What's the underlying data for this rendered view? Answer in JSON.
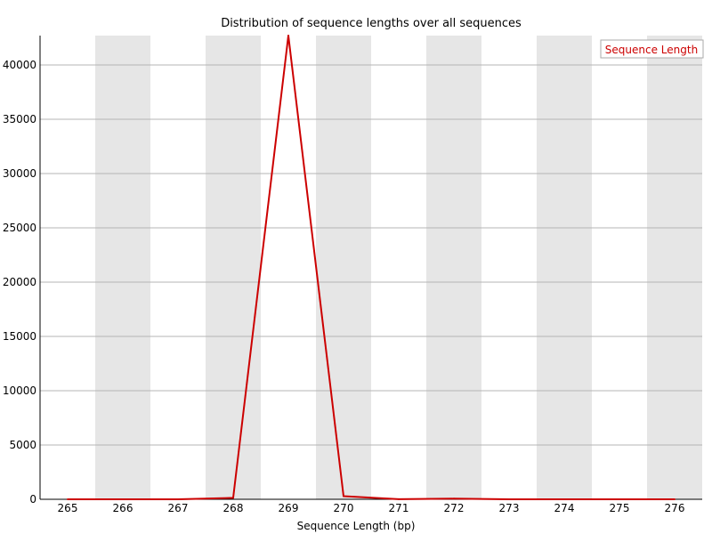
{
  "chart_data": {
    "type": "line",
    "title": "Distribution of sequence lengths over all sequences",
    "xlabel": "Sequence Length (bp)",
    "ylabel": "",
    "x": [
      265,
      266,
      267,
      268,
      269,
      270,
      271,
      272,
      273,
      274,
      275,
      276
    ],
    "ylim": [
      0,
      42700
    ],
    "yticks": [
      0,
      5000,
      10000,
      15000,
      20000,
      25000,
      30000,
      35000,
      40000
    ],
    "grid": true,
    "alternating_bands": true,
    "legend": {
      "placement": "top-right"
    },
    "series": [
      {
        "name": "Sequence Length",
        "color": "#cc0000",
        "values": [
          0,
          0,
          0,
          130,
          42700,
          290,
          10,
          60,
          0,
          0,
          0,
          0
        ]
      }
    ]
  }
}
